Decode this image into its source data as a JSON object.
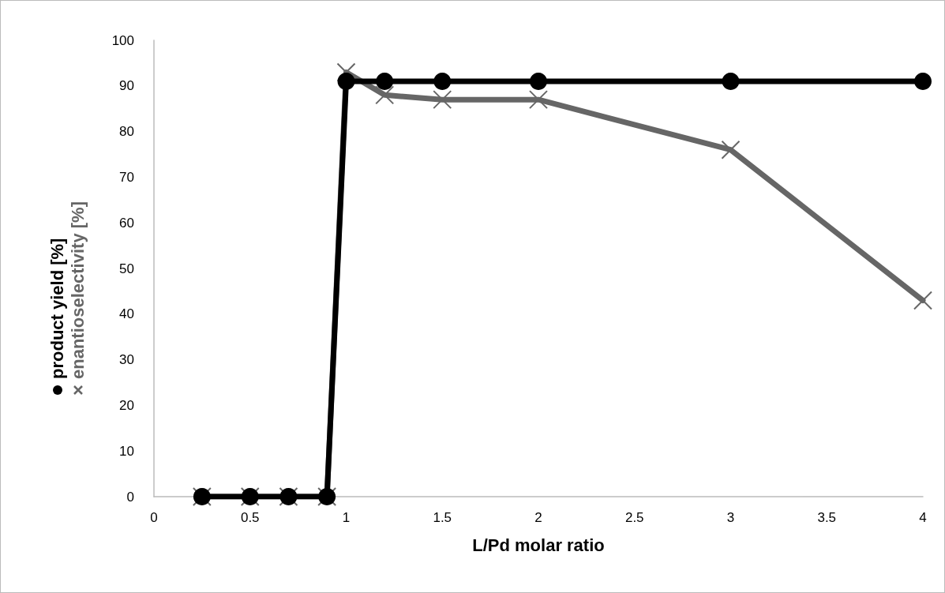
{
  "chart_data": {
    "type": "line",
    "xlabel": "L/Pd molar ratio",
    "x": [
      0.25,
      0.5,
      0.7,
      0.9,
      1,
      1.2,
      1.5,
      2,
      3,
      4
    ],
    "series": [
      {
        "name": "enantioselectivity [%]",
        "color": "#666666",
        "marker": "cross",
        "values": [
          0,
          0,
          0,
          0,
          93,
          88,
          87,
          87,
          76,
          43
        ]
      },
      {
        "name": "product yield [%]",
        "color": "#000000",
        "marker": "circle",
        "values": [
          0,
          0,
          0,
          0,
          91,
          91,
          91,
          91,
          91,
          91
        ]
      }
    ],
    "xlim": [
      0,
      4
    ],
    "xticks": [
      0,
      0.5,
      1,
      1.5,
      2,
      2.5,
      3,
      3.5,
      4
    ],
    "ylim": [
      0,
      100
    ],
    "yticks": [
      0,
      10,
      20,
      30,
      40,
      50,
      60,
      70,
      80,
      90,
      100
    ],
    "grid": false,
    "legend": "left",
    "line_style": "solid"
  }
}
